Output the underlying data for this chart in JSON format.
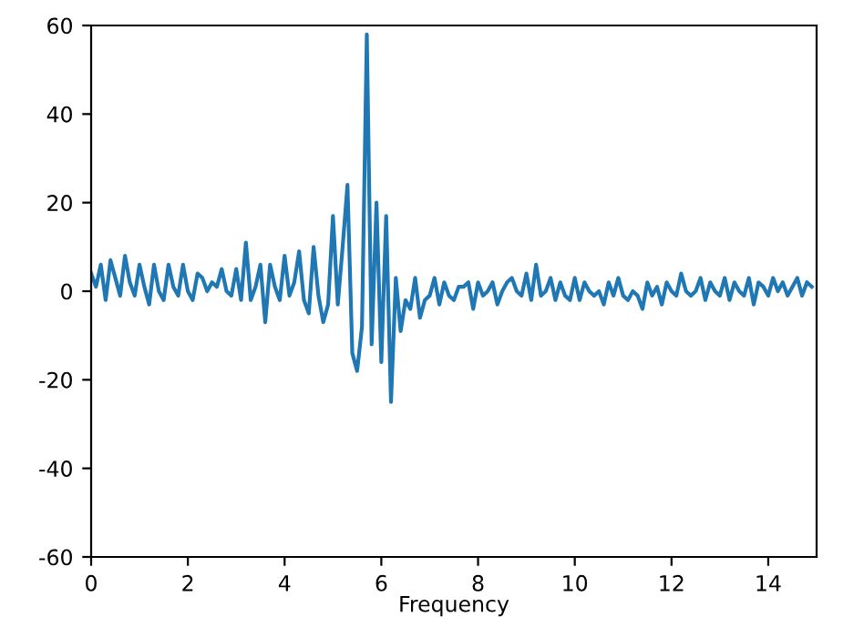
{
  "chart_data": {
    "type": "line",
    "xlabel": "Frequency",
    "xlim": [
      0,
      15
    ],
    "ylim": [
      -60,
      60
    ],
    "xticks": [
      0,
      2,
      4,
      6,
      8,
      10,
      12,
      14
    ],
    "yticks": [
      -60,
      -40,
      -20,
      0,
      20,
      40,
      60
    ],
    "grid": false,
    "legend": false,
    "series": [
      {
        "color": "#1f77b4",
        "x": [
          0,
          0.1,
          0.2,
          0.3,
          0.4,
          0.5,
          0.6,
          0.7,
          0.8,
          0.9,
          1.0,
          1.1,
          1.2,
          1.3,
          1.4,
          1.5,
          1.6,
          1.7,
          1.8,
          1.9,
          2.0,
          2.1,
          2.2,
          2.3,
          2.4,
          2.5,
          2.6,
          2.7,
          2.8,
          2.9,
          3.0,
          3.1,
          3.2,
          3.3,
          3.4,
          3.5,
          3.6,
          3.7,
          3.8,
          3.9,
          4.0,
          4.1,
          4.2,
          4.3,
          4.4,
          4.5,
          4.6,
          4.7,
          4.8,
          4.9,
          5.0,
          5.1,
          5.2,
          5.3,
          5.4,
          5.5,
          5.6,
          5.7,
          5.8,
          5.9,
          6.0,
          6.1,
          6.2,
          6.3,
          6.4,
          6.5,
          6.6,
          6.7,
          6.8,
          6.9,
          7.0,
          7.1,
          7.2,
          7.3,
          7.4,
          7.5,
          7.6,
          7.7,
          7.8,
          7.9,
          8.0,
          8.1,
          8.2,
          8.3,
          8.4,
          8.5,
          8.6,
          8.7,
          8.8,
          8.9,
          9.0,
          9.1,
          9.2,
          9.3,
          9.4,
          9.5,
          9.6,
          9.7,
          9.8,
          9.9,
          10.0,
          10.1,
          10.2,
          10.3,
          10.4,
          10.5,
          10.6,
          10.7,
          10.8,
          10.9,
          11.0,
          11.1,
          11.2,
          11.3,
          11.4,
          11.5,
          11.6,
          11.7,
          11.8,
          11.9,
          12.0,
          12.1,
          12.2,
          12.3,
          12.4,
          12.5,
          12.6,
          12.7,
          12.8,
          12.9,
          13.0,
          13.1,
          13.2,
          13.3,
          13.4,
          13.5,
          13.6,
          13.7,
          13.8,
          13.9,
          14.0,
          14.1,
          14.2,
          14.3,
          14.4,
          14.5,
          14.6,
          14.7,
          14.8,
          14.9
        ],
        "values": [
          4,
          1,
          6,
          -2,
          7,
          3,
          -1,
          8,
          2,
          -1,
          6,
          1,
          -3,
          6,
          0,
          -2,
          6,
          1,
          -1,
          6,
          0,
          -2,
          4,
          3,
          0,
          2,
          1,
          5,
          0,
          -1,
          5,
          -2,
          11,
          -2,
          1,
          6,
          -7,
          6,
          1,
          -2,
          8,
          -1,
          2,
          9,
          -2,
          -5,
          10,
          -1,
          -7,
          -3,
          17,
          -3,
          10,
          24,
          -14,
          -18,
          -8,
          58,
          -12,
          20,
          -16,
          17,
          -25,
          3,
          -9,
          -2,
          -4,
          3,
          -6,
          -2,
          -1,
          3,
          -3,
          2,
          -1,
          -2,
          1,
          1,
          2,
          -4,
          2,
          -1,
          0,
          2,
          -3,
          0,
          2,
          3,
          0,
          -1,
          4,
          -2,
          6,
          -1,
          0,
          3,
          -2,
          2,
          -1,
          -2,
          3,
          -2,
          2,
          0,
          -1,
          0,
          -3,
          2,
          -1,
          3,
          -1,
          -2,
          0,
          -1,
          -4,
          2,
          -1,
          1,
          -3,
          2,
          0,
          -1,
          4,
          0,
          -1,
          0,
          3,
          -2,
          2,
          0,
          -1,
          3,
          -2,
          2,
          0,
          -1,
          3,
          -3,
          2,
          1,
          -1,
          3,
          0,
          2,
          -1,
          1,
          3,
          -1,
          2,
          1
        ],
        "line_style": "solid"
      }
    ]
  }
}
